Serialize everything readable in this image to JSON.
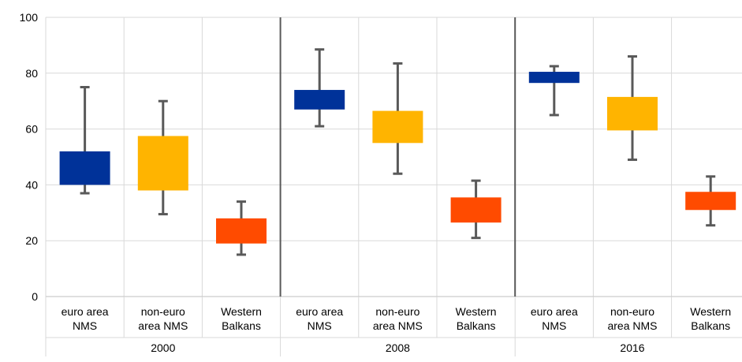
{
  "chart_data": {
    "type": "boxplot",
    "title": "",
    "xlabel": "",
    "ylabel": "",
    "ylim": [
      0,
      100
    ],
    "yticks": [
      0,
      20,
      40,
      60,
      80,
      100
    ],
    "grid": true,
    "groups": [
      "2000",
      "2008",
      "2016"
    ],
    "categories": [
      [
        "euro area",
        "NMS"
      ],
      [
        "non-euro",
        "area NMS"
      ],
      [
        "Western",
        "Balkans"
      ]
    ],
    "colors": {
      "euro area NMS": "#003299",
      "non-euro area NMS": "#ffb400",
      "Western Balkans": "#ff4b00"
    },
    "series": [
      {
        "group": "2000",
        "category": "euro area NMS",
        "min": 37,
        "q1": 40,
        "q3": 52,
        "max": 75
      },
      {
        "group": "2000",
        "category": "non-euro area NMS",
        "min": 29.5,
        "q1": 38,
        "q3": 57.5,
        "max": 70
      },
      {
        "group": "2000",
        "category": "Western Balkans",
        "min": 15,
        "q1": 19,
        "q3": 28,
        "max": 34
      },
      {
        "group": "2008",
        "category": "euro area NMS",
        "min": 61,
        "q1": 67,
        "q3": 74,
        "max": 88.5
      },
      {
        "group": "2008",
        "category": "non-euro area NMS",
        "min": 44,
        "q1": 55,
        "q3": 66.5,
        "max": 83.5
      },
      {
        "group": "2008",
        "category": "Western Balkans",
        "min": 21,
        "q1": 26.5,
        "q3": 35.5,
        "max": 41.5
      },
      {
        "group": "2016",
        "category": "euro area NMS",
        "min": 65,
        "q1": 76.5,
        "q3": 80.5,
        "max": 82.5
      },
      {
        "group": "2016",
        "category": "non-euro area NMS",
        "min": 49,
        "q1": 59.5,
        "q3": 71.5,
        "max": 86
      },
      {
        "group": "2016",
        "category": "Western Balkans",
        "min": 25.5,
        "q1": 31,
        "q3": 37.5,
        "max": 43
      }
    ]
  }
}
